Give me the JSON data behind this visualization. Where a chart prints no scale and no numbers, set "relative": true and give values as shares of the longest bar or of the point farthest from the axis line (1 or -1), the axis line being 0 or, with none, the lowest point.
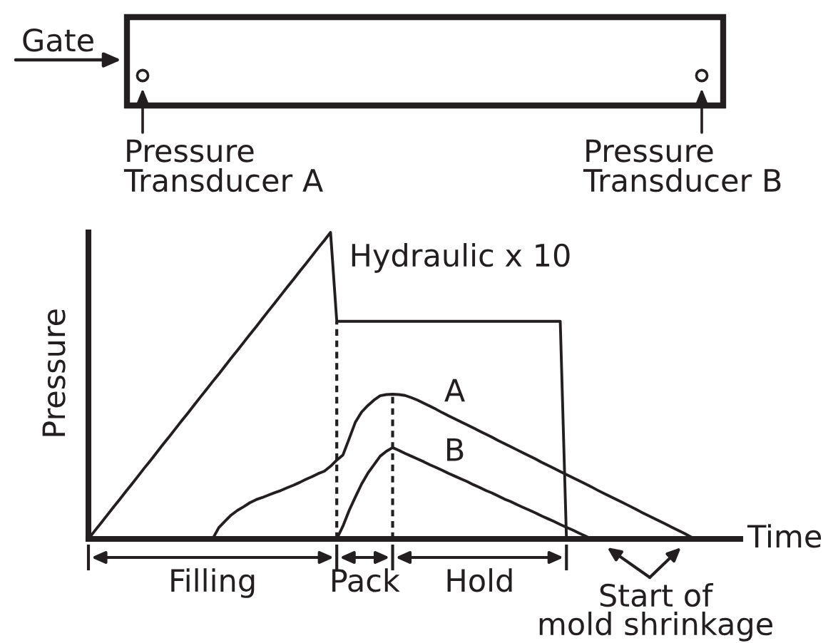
{
  "chart_data": {
    "type": "line",
    "relative": true,
    "xlabel": "Time",
    "ylabel": "Pressure",
    "line_style": "solid",
    "categories": [
      null,
      null,
      null,
      null,
      null,
      null,
      null,
      null,
      null,
      null,
      null,
      null,
      null,
      null,
      null,
      null,
      null,
      null,
      null,
      null,
      null,
      null,
      null,
      null,
      null,
      null,
      null,
      null,
      null,
      null,
      null,
      null,
      null,
      null,
      null,
      null,
      null,
      null,
      null,
      null,
      null,
      null,
      null,
      null,
      null,
      null,
      null,
      null,
      null,
      null,
      null,
      null,
      null,
      null,
      null,
      null,
      null,
      null,
      null,
      null,
      null,
      null,
      null,
      null,
      null,
      null,
      null,
      null,
      null,
      null,
      null,
      null,
      null,
      null,
      null,
      null,
      null,
      null,
      null,
      null,
      null,
      null,
      null,
      null,
      null,
      null,
      null,
      null,
      null,
      null,
      null,
      null,
      null,
      null,
      null,
      null,
      null,
      null,
      null,
      null,
      null,
      null,
      null,
      null,
      null,
      null
    ],
    "series": [
      {
        "name": "Hydraulic x 10",
        "color": "#231f20",
        "values": [
          0,
          0.026,
          0.051,
          0.077,
          0.103,
          0.128,
          0.154,
          0.179,
          0.205,
          0.231,
          0.256,
          0.282,
          0.308,
          0.333,
          0.359,
          0.385,
          0.41,
          0.436,
          0.462,
          0.487,
          0.513,
          0.538,
          0.564,
          0.59,
          0.615,
          0.641,
          0.667,
          0.692,
          0.718,
          0.744,
          0.769,
          0.795,
          0.821,
          0.846,
          0.872,
          0.897,
          0.923,
          0.949,
          0.974,
          1,
          0.71,
          0.71,
          0.71,
          0.71,
          0.71,
          0.71,
          0.71,
          0.71,
          0.71,
          0.71,
          0.71,
          0.71,
          0.71,
          0.71,
          0.71,
          0.71,
          0.71,
          0.71,
          0.71,
          0.71,
          0.71,
          0.71,
          0.71,
          0.71,
          0.71,
          0.71,
          0.71,
          0.71,
          0.71,
          0.71,
          0.71,
          0.71,
          0.71,
          0.71,
          0.71,
          0.71,
          0.71,
          0,
          null,
          null,
          null,
          null,
          null,
          null,
          null,
          null,
          null,
          null,
          null,
          null,
          null,
          null,
          null,
          null,
          null,
          null,
          null,
          null,
          null,
          null,
          null,
          null,
          null,
          null,
          null,
          null
        ]
      },
      {
        "name": "A",
        "color": "#231f20",
        "values": [
          null,
          null,
          null,
          null,
          null,
          null,
          null,
          null,
          null,
          null,
          null,
          null,
          null,
          null,
          null,
          null,
          null,
          null,
          null,
          null,
          0,
          0.037,
          0.058,
          0.078,
          0.093,
          0.105,
          0.118,
          0.128,
          0.135,
          0.143,
          0.151,
          0.158,
          0.167,
          0.175,
          0.184,
          0.194,
          0.203,
          0.213,
          0.221,
          0.237,
          0.257,
          0.274,
          0.327,
          0.381,
          0.414,
          0.435,
          0.453,
          0.467,
          0.471,
          0.472,
          0.471,
          0.468,
          0.461,
          0.453,
          0.443,
          0.433,
          0.423,
          0.412,
          0.402,
          0.392,
          0.382,
          0.372,
          0.362,
          0.352,
          0.342,
          0.332,
          0.321,
          0.311,
          0.301,
          0.291,
          0.281,
          0.271,
          0.261,
          0.25,
          0.24,
          0.23,
          0.22,
          0.21,
          0.2,
          0.19,
          0.18,
          0.17,
          0.159,
          0.149,
          0.139,
          0.129,
          0.119,
          0.109,
          0.099,
          0.088,
          0.078,
          0.068,
          0.058,
          0.048,
          0.038,
          0.028,
          0.018,
          0.007,
          0,
          null,
          null,
          null,
          null,
          null,
          null,
          null
        ]
      },
      {
        "name": "B",
        "color": "#231f20",
        "values": [
          null,
          null,
          null,
          null,
          null,
          null,
          null,
          null,
          null,
          null,
          null,
          null,
          null,
          null,
          null,
          null,
          null,
          null,
          null,
          null,
          null,
          null,
          null,
          null,
          null,
          null,
          null,
          null,
          null,
          null,
          null,
          null,
          null,
          null,
          null,
          null,
          null,
          null,
          null,
          null,
          0,
          0.042,
          0.093,
          0.137,
          0.179,
          0.214,
          0.242,
          0.27,
          0.286,
          0.298,
          0.289,
          0.279,
          0.27,
          0.261,
          0.252,
          0.242,
          0.233,
          0.224,
          0.214,
          0.205,
          0.196,
          0.187,
          0.177,
          0.168,
          0.158,
          0.15,
          0.14,
          0.13,
          0.122,
          0.112,
          0.103,
          0.094,
          0.085,
          0.075,
          0.066,
          0.057,
          0.047,
          0.038,
          0.029,
          0.019,
          0.01,
          0,
          null,
          null,
          null,
          null,
          null,
          null,
          null,
          null,
          null,
          null,
          null,
          null,
          null,
          null,
          null,
          null,
          null,
          null,
          null,
          null,
          null,
          null,
          null,
          null
        ]
      }
    ],
    "annotations": [
      "Gate",
      "Pressure\nTransducer A",
      "Pressure\nTransducer B",
      "Filling",
      "Pack",
      "Hold",
      "Start of\nmold shrinkage"
    ]
  }
}
